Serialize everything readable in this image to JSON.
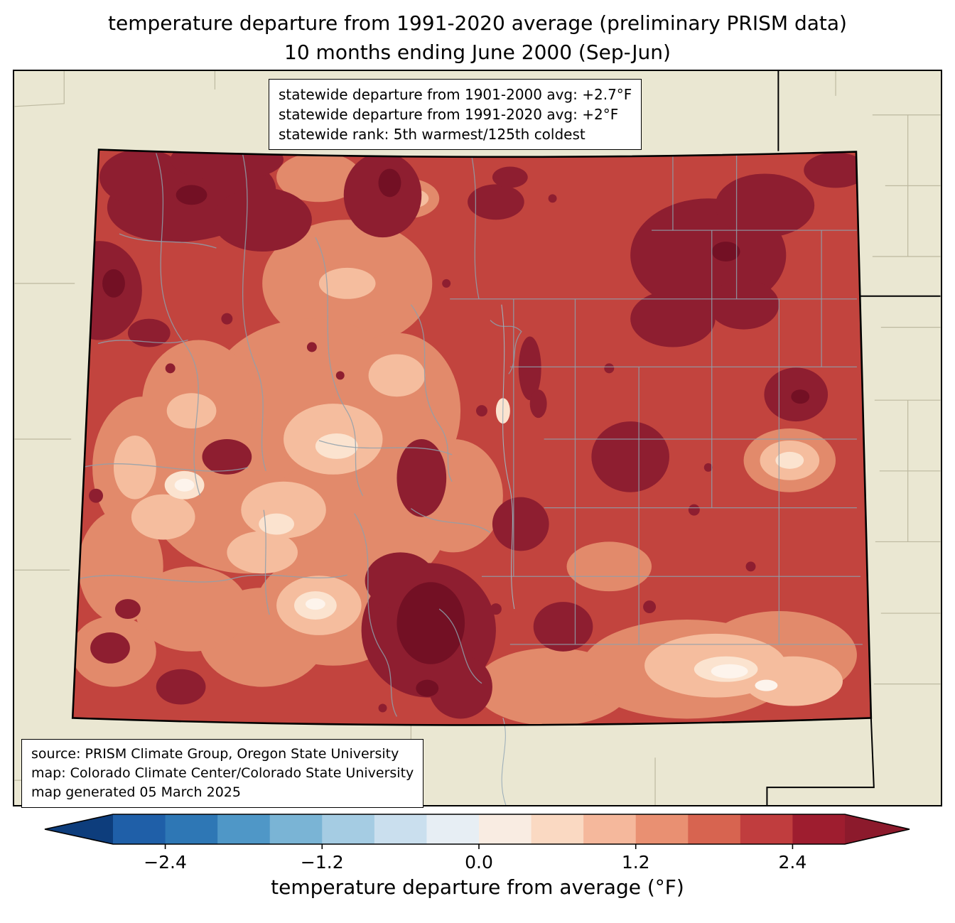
{
  "title": {
    "line1": "temperature departure from 1991-2020 average (preliminary PRISM data)",
    "line2": "10 months ending June 2000 (Sep-Jun)"
  },
  "stats_box": {
    "lines": [
      "statewide departure from 1901-2000 avg: +2.7°F",
      "statewide departure from 1991-2020 avg: +2°F",
      "statewide rank: 5th warmest/125th coldest"
    ]
  },
  "source_box": {
    "lines": [
      "source: PRISM Climate Group, Oregon State University",
      "map: Colorado Climate Center/Colorado State University",
      "map generated 05 March 2025"
    ]
  },
  "colorbar": {
    "label": "temperature departure from average (°F)",
    "ticks": [
      "−2.4",
      "−1.2",
      "0.0",
      "1.2",
      "2.4"
    ],
    "tick_values": [
      -2.4,
      -1.2,
      0.0,
      1.2,
      2.4
    ],
    "range": [
      -2.8,
      2.8
    ],
    "segment_step": 0.4,
    "segment_colors": [
      "#1f5fa8",
      "#2e77b5",
      "#4f97c7",
      "#7ab4d5",
      "#a5cce3",
      "#cadfee",
      "#e7eef4",
      "#f9ece2",
      "#fad9c2",
      "#f5b89c",
      "#e99072",
      "#d76450",
      "#c03d3e",
      "#9e1d2f"
    ],
    "under_arrow_color": "#0d3d7c",
    "over_arrow_color": "#8c1a2c"
  },
  "map": {
    "region": "Colorado",
    "palette": {
      "background": "#eae7d2",
      "state_base_red": "#c2443e",
      "dark_red": "#8e1e30",
      "darkest_red": "#731024",
      "salmon": "#e28a6b",
      "peach": "#f5bd9e",
      "cream": "#fbe3cf",
      "near_white": "#fdf4ec",
      "county_line": "#8ea0ac",
      "neighbor_county_line": "#bdb9a0",
      "state_border": "#000000"
    }
  },
  "chart_data": {
    "type": "choropleth_map",
    "region": "Colorado",
    "variable": "temperature departure from average (°F)",
    "baseline": "1991-2020 average",
    "dataset": "preliminary PRISM data",
    "period": "10 months ending June 2000 (Sep-Jun)",
    "statewide_departure_from_1901_2000_avg_F": 2.7,
    "statewide_departure_from_1991_2020_avg_F": 2.0,
    "statewide_rank": "5th warmest/125th coldest",
    "colorbar_range_F": [
      -2.8,
      2.8
    ],
    "colorbar_ticks_F": [
      -2.4,
      -1.2,
      0.0,
      1.2,
      2.4
    ],
    "map_generated": "05 March 2025"
  }
}
